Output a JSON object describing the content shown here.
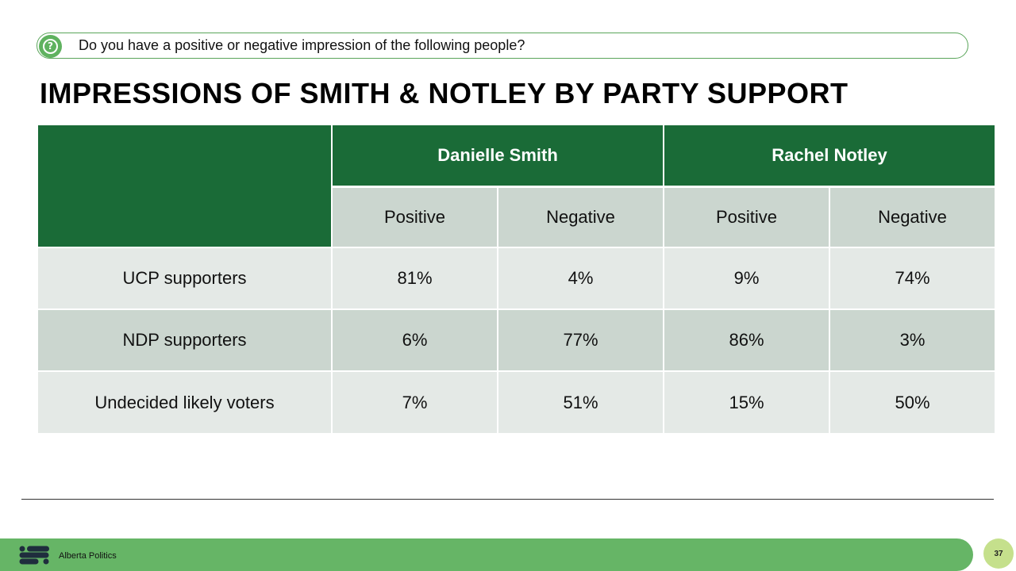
{
  "question": {
    "icon": "question-circle-icon",
    "text": "Do you have a positive or negative impression of the following people?"
  },
  "title": "IMPRESSIONS OF SMITH & NOTLEY BY PARTY SUPPORT",
  "table": {
    "groups": [
      "Danielle Smith",
      "Rachel Notley"
    ],
    "subheaders": [
      "Positive",
      "Negative",
      "Positive",
      "Negative"
    ],
    "rows": [
      {
        "label": "UCP supporters",
        "values": [
          "81%",
          "4%",
          "9%",
          "74%"
        ]
      },
      {
        "label": "NDP supporters",
        "values": [
          "6%",
          "77%",
          "86%",
          "3%"
        ]
      },
      {
        "label": "Undecided likely voters",
        "values": [
          "7%",
          "51%",
          "15%",
          "50%"
        ]
      }
    ]
  },
  "footer": {
    "logo_icon": "alberta-politics-logo-icon",
    "brand": "Alberta Politics",
    "page_number": "37"
  },
  "colors": {
    "header_green": "#1a6b37",
    "accent_green": "#66b566",
    "subheader_gray": "#cbd6cf",
    "row_light": "#e4e9e6",
    "page_badge": "#c5e08c"
  }
}
